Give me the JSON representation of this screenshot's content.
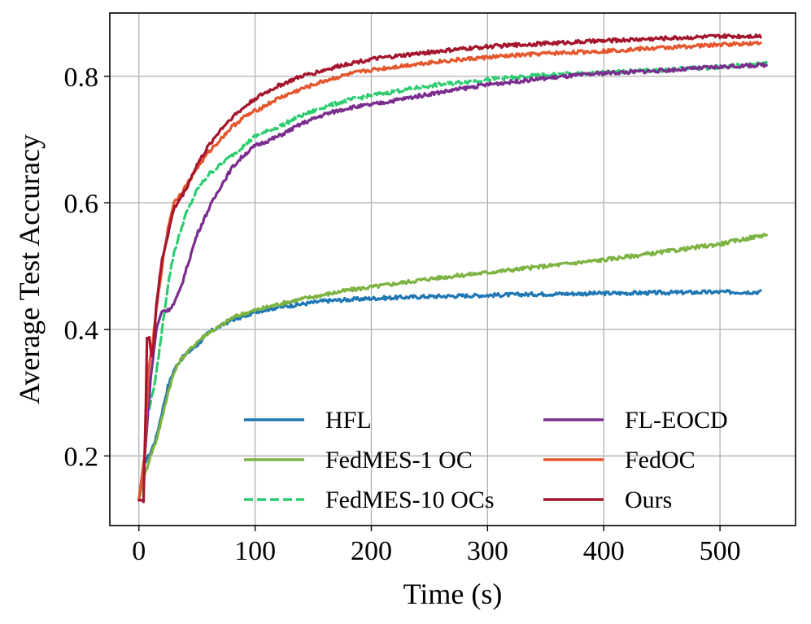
{
  "chart_data": {
    "type": "line",
    "title": "",
    "xlabel": "Time (s)",
    "ylabel": "Average Test Accuracy",
    "xlim": [
      -25,
      565
    ],
    "ylim": [
      0.09,
      0.9
    ],
    "xticks": [
      0,
      100,
      200,
      300,
      400,
      500
    ],
    "xtick_labels": [
      "0",
      "100",
      "200",
      "300",
      "400",
      "500"
    ],
    "yticks": [
      0.2,
      0.4,
      0.6,
      0.8
    ],
    "ytick_labels": [
      "0.2",
      "0.4",
      "0.6",
      "0.8"
    ],
    "grid": true,
    "legend": {
      "placement": "bottom-right",
      "columns": 2
    },
    "series": [
      {
        "name": "HFL",
        "color": "#1f77b4",
        "dash": "solid",
        "points": [
          [
            0,
            0.13
          ],
          [
            5,
            0.19
          ],
          [
            10,
            0.205
          ],
          [
            15,
            0.23
          ],
          [
            20,
            0.27
          ],
          [
            25,
            0.31
          ],
          [
            30,
            0.335
          ],
          [
            35,
            0.35
          ],
          [
            40,
            0.36
          ],
          [
            50,
            0.375
          ],
          [
            60,
            0.395
          ],
          [
            70,
            0.405
          ],
          [
            80,
            0.415
          ],
          [
            90,
            0.42
          ],
          [
            100,
            0.428
          ],
          [
            120,
            0.435
          ],
          [
            140,
            0.44
          ],
          [
            160,
            0.445
          ],
          [
            180,
            0.447
          ],
          [
            200,
            0.449
          ],
          [
            250,
            0.452
          ],
          [
            300,
            0.454
          ],
          [
            350,
            0.456
          ],
          [
            400,
            0.457
          ],
          [
            450,
            0.458
          ],
          [
            500,
            0.459
          ],
          [
            535,
            0.459
          ]
        ]
      },
      {
        "name": "FedMES-1 OC",
        "color": "#7cb342",
        "dash": "solid",
        "points": [
          [
            0,
            0.13
          ],
          [
            5,
            0.17
          ],
          [
            10,
            0.2
          ],
          [
            15,
            0.225
          ],
          [
            20,
            0.26
          ],
          [
            25,
            0.3
          ],
          [
            30,
            0.33
          ],
          [
            35,
            0.35
          ],
          [
            40,
            0.36
          ],
          [
            50,
            0.38
          ],
          [
            60,
            0.395
          ],
          [
            70,
            0.405
          ],
          [
            80,
            0.418
          ],
          [
            90,
            0.425
          ],
          [
            100,
            0.43
          ],
          [
            120,
            0.44
          ],
          [
            140,
            0.448
          ],
          [
            160,
            0.455
          ],
          [
            180,
            0.462
          ],
          [
            200,
            0.467
          ],
          [
            250,
            0.48
          ],
          [
            300,
            0.49
          ],
          [
            350,
            0.5
          ],
          [
            400,
            0.51
          ],
          [
            450,
            0.522
          ],
          [
            500,
            0.535
          ],
          [
            540,
            0.55
          ]
        ]
      },
      {
        "name": "FedMES-10 OCs",
        "color": "#2ecc71",
        "dash": "dashed",
        "points": [
          [
            0,
            0.13
          ],
          [
            5,
            0.2
          ],
          [
            8,
            0.27
          ],
          [
            12,
            0.3
          ],
          [
            15,
            0.33
          ],
          [
            20,
            0.4
          ],
          [
            25,
            0.47
          ],
          [
            30,
            0.52
          ],
          [
            40,
            0.58
          ],
          [
            50,
            0.62
          ],
          [
            60,
            0.645
          ],
          [
            70,
            0.66
          ],
          [
            80,
            0.675
          ],
          [
            90,
            0.69
          ],
          [
            100,
            0.705
          ],
          [
            120,
            0.72
          ],
          [
            140,
            0.738
          ],
          [
            160,
            0.752
          ],
          [
            180,
            0.762
          ],
          [
            200,
            0.77
          ],
          [
            250,
            0.785
          ],
          [
            300,
            0.795
          ],
          [
            350,
            0.802
          ],
          [
            400,
            0.806
          ],
          [
            450,
            0.81
          ],
          [
            500,
            0.815
          ],
          [
            540,
            0.82
          ]
        ]
      },
      {
        "name": "FL-EOCD",
        "color": "#7b2d8e",
        "dash": "solid",
        "points": [
          [
            0,
            0.13
          ],
          [
            5,
            0.2
          ],
          [
            10,
            0.32
          ],
          [
            15,
            0.4
          ],
          [
            20,
            0.43
          ],
          [
            25,
            0.43
          ],
          [
            30,
            0.44
          ],
          [
            35,
            0.46
          ],
          [
            40,
            0.49
          ],
          [
            50,
            0.55
          ],
          [
            60,
            0.59
          ],
          [
            70,
            0.625
          ],
          [
            80,
            0.655
          ],
          [
            90,
            0.675
          ],
          [
            100,
            0.69
          ],
          [
            120,
            0.705
          ],
          [
            140,
            0.725
          ],
          [
            160,
            0.74
          ],
          [
            180,
            0.75
          ],
          [
            200,
            0.755
          ],
          [
            250,
            0.772
          ],
          [
            300,
            0.787
          ],
          [
            350,
            0.797
          ],
          [
            400,
            0.805
          ],
          [
            450,
            0.809
          ],
          [
            500,
            0.815
          ],
          [
            540,
            0.818
          ]
        ]
      },
      {
        "name": "FedOC",
        "color": "#e4572e",
        "dash": "solid",
        "points": [
          [
            0,
            0.13
          ],
          [
            5,
            0.2
          ],
          [
            8,
            0.33
          ],
          [
            12,
            0.38
          ],
          [
            15,
            0.43
          ],
          [
            20,
            0.5
          ],
          [
            25,
            0.56
          ],
          [
            30,
            0.6
          ],
          [
            40,
            0.625
          ],
          [
            50,
            0.655
          ],
          [
            60,
            0.68
          ],
          [
            70,
            0.7
          ],
          [
            80,
            0.72
          ],
          [
            90,
            0.735
          ],
          [
            100,
            0.745
          ],
          [
            120,
            0.765
          ],
          [
            140,
            0.78
          ],
          [
            160,
            0.793
          ],
          [
            180,
            0.803
          ],
          [
            200,
            0.81
          ],
          [
            250,
            0.822
          ],
          [
            300,
            0.83
          ],
          [
            350,
            0.836
          ],
          [
            400,
            0.84
          ],
          [
            450,
            0.845
          ],
          [
            500,
            0.85
          ],
          [
            535,
            0.853
          ]
        ]
      },
      {
        "name": "Ours",
        "color": "#a4162d",
        "dash": "solid",
        "points": [
          [
            0,
            0.13
          ],
          [
            4,
            0.13
          ],
          [
            6,
            0.28
          ],
          [
            7,
            0.385
          ],
          [
            9,
            0.385
          ],
          [
            11,
            0.36
          ],
          [
            13,
            0.38
          ],
          [
            15,
            0.44
          ],
          [
            20,
            0.51
          ],
          [
            25,
            0.55
          ],
          [
            30,
            0.59
          ],
          [
            40,
            0.62
          ],
          [
            50,
            0.66
          ],
          [
            60,
            0.69
          ],
          [
            70,
            0.715
          ],
          [
            80,
            0.735
          ],
          [
            90,
            0.75
          ],
          [
            100,
            0.765
          ],
          [
            120,
            0.785
          ],
          [
            140,
            0.8
          ],
          [
            160,
            0.81
          ],
          [
            180,
            0.82
          ],
          [
            200,
            0.827
          ],
          [
            250,
            0.838
          ],
          [
            300,
            0.847
          ],
          [
            350,
            0.852
          ],
          [
            400,
            0.856
          ],
          [
            450,
            0.86
          ],
          [
            500,
            0.863
          ],
          [
            535,
            0.864
          ]
        ]
      }
    ]
  }
}
